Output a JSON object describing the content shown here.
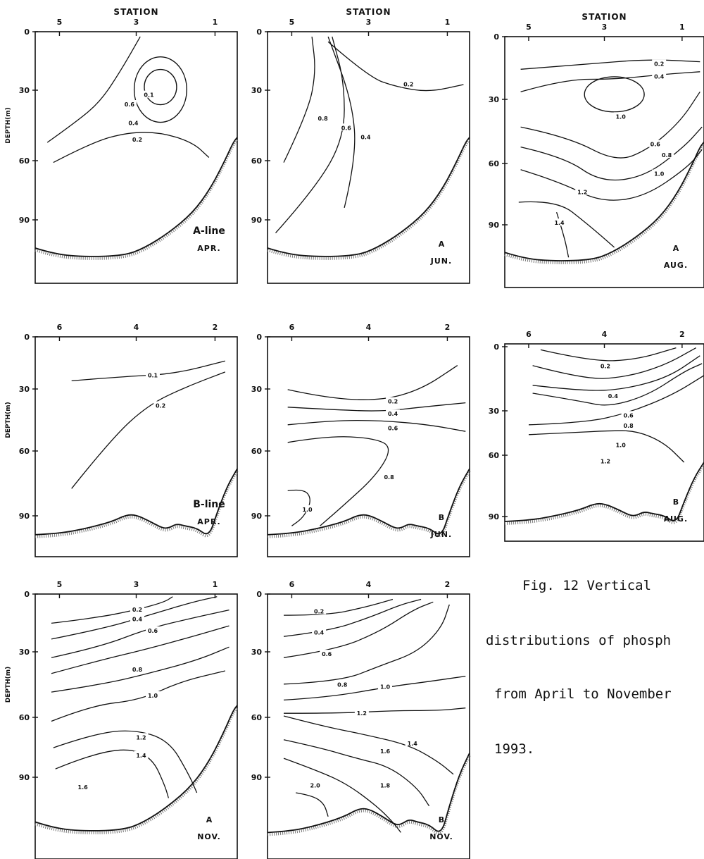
{
  "axis": {
    "station": "STATION",
    "depth": "DEPTH(m)"
  },
  "caption": {
    "line1": "Fig. 12  Vertical",
    "line2": "distributions of phosph",
    "line3": "from April to November",
    "line4": "1993."
  },
  "panels": [
    {
      "id": "a-apr",
      "line_label": "A-line",
      "month": "APR.",
      "station_ticks": [
        "5",
        "3",
        "1"
      ],
      "depth_ticks": [
        "0",
        "30",
        "60",
        "90"
      ],
      "show_station_title": true,
      "show_depth_label": true,
      "contours": [
        {
          "value": "0.1",
          "label_at": [
            2.7,
            32
          ]
        },
        {
          "value": "0.6",
          "label_at": [
            3.2,
            36
          ]
        },
        {
          "value": "0.4",
          "label_at": [
            3.1,
            44
          ]
        },
        {
          "value": "0.2",
          "label_at": [
            3.0,
            51
          ]
        }
      ]
    },
    {
      "id": "a-jun",
      "line_label": "A",
      "month": "JUN.",
      "station_ticks": [
        "5",
        "3",
        "1"
      ],
      "depth_ticks": [
        "0",
        "30",
        "60",
        "90"
      ],
      "show_station_title": true,
      "show_depth_label": false,
      "contours": [
        {
          "value": "0.2",
          "label_at": [
            2.0,
            27
          ]
        },
        {
          "value": "0.8",
          "label_at": [
            4.2,
            42
          ]
        },
        {
          "value": "0.6",
          "label_at": [
            3.6,
            46
          ]
        },
        {
          "value": "0.4",
          "label_at": [
            3.1,
            50
          ]
        }
      ]
    },
    {
      "id": "a-aug",
      "line_label": "A",
      "month": "AUG.",
      "station_ticks": [
        "5",
        "3",
        "1"
      ],
      "depth_ticks": [
        "0",
        "30",
        "60",
        "90"
      ],
      "show_station_title": true,
      "show_depth_label": false,
      "contours": [
        {
          "value": "0.2",
          "label_at": [
            1.6,
            13
          ]
        },
        {
          "value": "0.4",
          "label_at": [
            1.6,
            19
          ]
        },
        {
          "value": "1.0",
          "label_at": [
            2.6,
            38
          ]
        },
        {
          "value": "0.6",
          "label_at": [
            1.7,
            51
          ]
        },
        {
          "value": "0.8",
          "label_at": [
            1.4,
            56
          ]
        },
        {
          "value": "1.0",
          "label_at": [
            1.6,
            65
          ]
        },
        {
          "value": "1.2",
          "label_at": [
            3.6,
            74
          ]
        },
        {
          "value": "1.4",
          "label_at": [
            4.2,
            89
          ]
        }
      ]
    },
    {
      "id": "b-apr",
      "line_label": "B-line",
      "month": "APR.",
      "station_ticks": [
        "6",
        "4",
        "2"
      ],
      "depth_ticks": [
        "0",
        "30",
        "60",
        "90"
      ],
      "show_station_title": false,
      "show_depth_label": true,
      "contours": [
        {
          "value": "0.1",
          "label_at": [
            3.6,
            22
          ]
        },
        {
          "value": "0.2",
          "label_at": [
            3.4,
            38
          ]
        }
      ]
    },
    {
      "id": "b-jun",
      "line_label": "B",
      "month": "JUN.",
      "station_ticks": [
        "6",
        "4",
        "2"
      ],
      "depth_ticks": [
        "0",
        "30",
        "60",
        "90"
      ],
      "show_station_title": false,
      "show_depth_label": false,
      "contours": [
        {
          "value": "0.2",
          "label_at": [
            3.4,
            36
          ]
        },
        {
          "value": "0.4",
          "label_at": [
            3.4,
            42
          ]
        },
        {
          "value": "0.6",
          "label_at": [
            3.4,
            49
          ]
        },
        {
          "value": "0.8",
          "label_at": [
            3.5,
            72
          ]
        },
        {
          "value": "1.0",
          "label_at": [
            5.6,
            87
          ]
        }
      ]
    },
    {
      "id": "b-aug",
      "line_label": "B",
      "month": "AUG.",
      "station_ticks": [
        "6",
        "4",
        "2"
      ],
      "depth_ticks": [
        "0",
        "30",
        "60",
        "90"
      ],
      "show_station_title": false,
      "show_depth_label": false,
      "contours": [
        {
          "value": "0.2",
          "label_at": [
            4.0,
            9
          ]
        },
        {
          "value": "0.4",
          "label_at": [
            3.8,
            23
          ]
        },
        {
          "value": "0.6",
          "label_at": [
            3.4,
            33
          ]
        },
        {
          "value": "0.8",
          "label_at": [
            3.4,
            40
          ]
        },
        {
          "value": "1.0",
          "label_at": [
            3.6,
            53
          ]
        },
        {
          "value": "1.2",
          "label_at": [
            4.0,
            63
          ]
        }
      ]
    },
    {
      "id": "a-nov",
      "line_label": "A",
      "month": "NOV.",
      "station_ticks": [
        "5",
        "3",
        "1"
      ],
      "depth_ticks": [
        "0",
        "30",
        "60",
        "90"
      ],
      "show_station_title": false,
      "show_depth_label": true,
      "contours": [
        {
          "value": "0.2",
          "label_at": [
            3.0,
            8
          ]
        },
        {
          "value": "0.4",
          "label_at": [
            3.0,
            13
          ]
        },
        {
          "value": "0.6",
          "label_at": [
            2.6,
            19
          ]
        },
        {
          "value": "0.8",
          "label_at": [
            3.0,
            38
          ]
        },
        {
          "value": "1.0",
          "label_at": [
            2.6,
            50
          ]
        },
        {
          "value": "1.2",
          "label_at": [
            2.9,
            70
          ]
        },
        {
          "value": "1.4",
          "label_at": [
            2.9,
            79
          ]
        },
        {
          "value": "1.6",
          "label_at": [
            4.4,
            95
          ]
        }
      ]
    },
    {
      "id": "b-nov",
      "line_label": "B",
      "month": "NOV.",
      "station_ticks": [
        "6",
        "4",
        "2"
      ],
      "depth_ticks": [
        "0",
        "30",
        "60",
        "90"
      ],
      "show_station_title": false,
      "show_depth_label": false,
      "contours": [
        {
          "value": "0.2",
          "label_at": [
            5.3,
            9
          ]
        },
        {
          "value": "0.4",
          "label_at": [
            5.3,
            20
          ]
        },
        {
          "value": "0.6",
          "label_at": [
            5.1,
            31
          ]
        },
        {
          "value": "0.8",
          "label_at": [
            4.7,
            45
          ]
        },
        {
          "value": "1.0",
          "label_at": [
            3.6,
            46
          ]
        },
        {
          "value": "1.2",
          "label_at": [
            4.2,
            58
          ]
        },
        {
          "value": "1.4",
          "label_at": [
            2.9,
            73
          ]
        },
        {
          "value": "1.6",
          "label_at": [
            3.6,
            77
          ]
        },
        {
          "value": "1.8",
          "label_at": [
            3.6,
            94
          ]
        },
        {
          "value": "2.0",
          "label_at": [
            5.4,
            94
          ]
        }
      ]
    }
  ]
}
